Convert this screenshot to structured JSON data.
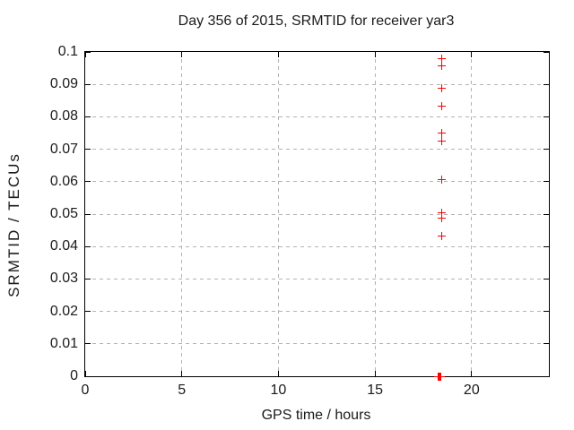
{
  "chart_data": {
    "type": "scatter",
    "title": "Day 356 of 2015, SRMTID for receiver yar3",
    "xlabel": "GPS time / hours",
    "ylabel": "SRMTID / TECUs",
    "xlim": [
      0,
      24
    ],
    "ylim": [
      0,
      0.1
    ],
    "xticks": [
      {
        "value": 0,
        "label": "0"
      },
      {
        "value": 5,
        "label": "5"
      },
      {
        "value": 10,
        "label": "10"
      },
      {
        "value": 15,
        "label": "15"
      },
      {
        "value": 20,
        "label": "20"
      }
    ],
    "yticks": [
      {
        "value": 0,
        "label": "0"
      },
      {
        "value": 0.01,
        "label": "0.01"
      },
      {
        "value": 0.02,
        "label": "0.02"
      },
      {
        "value": 0.03,
        "label": "0.03"
      },
      {
        "value": 0.04,
        "label": "0.04"
      },
      {
        "value": 0.05,
        "label": "0.05"
      },
      {
        "value": 0.06,
        "label": "0.06"
      },
      {
        "value": 0.07,
        "label": "0.07"
      },
      {
        "value": 0.08,
        "label": "0.08"
      },
      {
        "value": 0.09,
        "label": "0.09"
      },
      {
        "value": 0.1,
        "label": "0.1"
      }
    ],
    "grid": true,
    "legend": "none",
    "marker": "plus",
    "colors": {
      "marker": "#ff0000",
      "grid": "#b3b3b3",
      "axis": "#000000",
      "background": "#ffffff"
    },
    "series": [
      {
        "name": "SRMTID",
        "points": [
          [
            18.45,
            0.098
          ],
          [
            18.45,
            0.0957
          ],
          [
            18.43,
            0.0887
          ],
          [
            18.43,
            0.0834
          ],
          [
            18.45,
            0.075
          ],
          [
            18.45,
            0.0725
          ],
          [
            18.46,
            0.0607
          ],
          [
            18.45,
            0.0504
          ],
          [
            18.45,
            0.0488
          ],
          [
            18.46,
            0.0432
          ],
          [
            18.26,
            0.0
          ],
          [
            18.3,
            0.0
          ],
          [
            18.33,
            0.0
          ],
          [
            18.36,
            0.0
          ],
          [
            18.4,
            0.0
          ]
        ]
      }
    ]
  }
}
